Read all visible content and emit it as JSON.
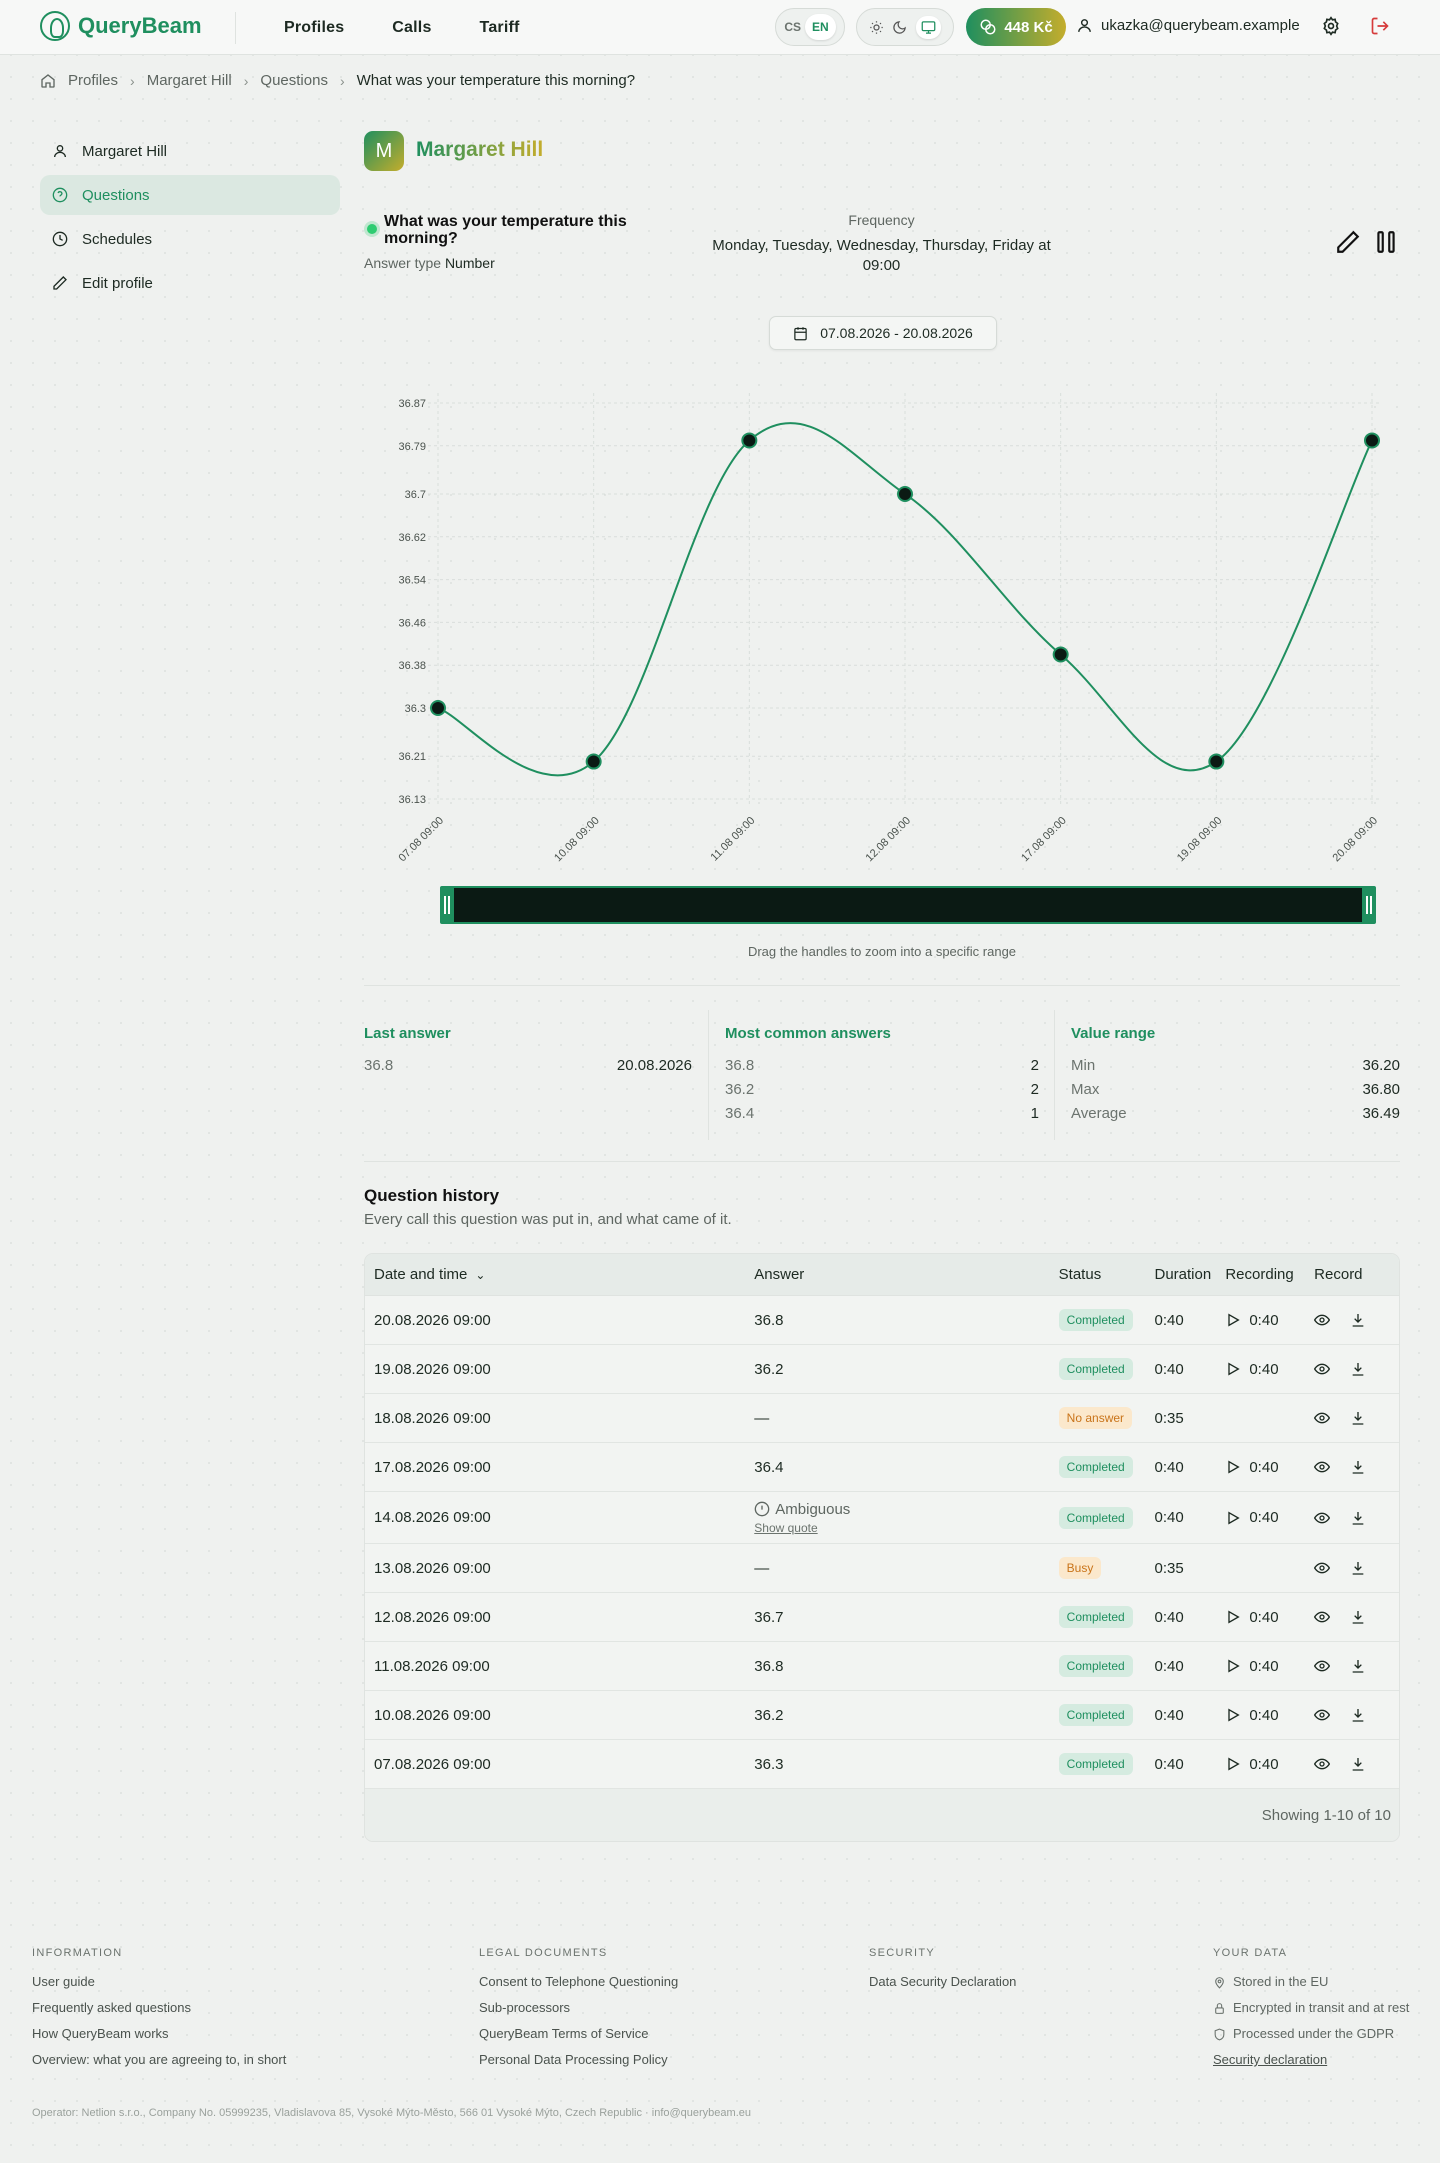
{
  "header": {
    "brand": "QueryBeam",
    "nav": [
      "Profiles",
      "Calls",
      "Tariff"
    ],
    "lang": {
      "cs": "CS",
      "en": "EN",
      "active": "EN"
    },
    "theme_icons": [
      "sun-icon",
      "moon-icon",
      "monitor-icon"
    ],
    "credit": "448 Kč",
    "user_email": "ukazka@querybeam.example"
  },
  "breadcrumb": [
    "Profiles",
    "Margaret Hill",
    "Questions",
    "What was your temperature this morning?"
  ],
  "sidebar": {
    "items": [
      {
        "label": "Margaret Hill",
        "icon": "user-icon"
      },
      {
        "label": "Questions",
        "icon": "help-circle-icon",
        "active": true
      },
      {
        "label": "Schedules",
        "icon": "clock-icon"
      },
      {
        "label": "Edit profile",
        "icon": "pencil-icon"
      }
    ]
  },
  "profile": {
    "initial": "M",
    "name": "Margaret Hill"
  },
  "question": {
    "title": "What was your temperature this morning?",
    "answer_type_label": "Answer type",
    "answer_type": "Number",
    "frequency_label": "Frequency",
    "frequency": "Monday, Tuesday, Wednesday, Thursday, Friday at 09:00"
  },
  "date_range": "07.08.2026 - 20.08.2026",
  "chart_data": {
    "type": "line",
    "x": [
      "07.08 09:00",
      "10.08 09:00",
      "11.08 09:00",
      "12.08 09:00",
      "17.08 09:00",
      "19.08 09:00",
      "20.08 09:00"
    ],
    "values": [
      36.3,
      36.2,
      36.8,
      36.7,
      36.4,
      36.2,
      36.8
    ],
    "yticks": [
      "36.87",
      "36.79",
      "36.7",
      "36.62",
      "36.54",
      "36.46",
      "36.38",
      "36.3",
      "36.21",
      "36.13"
    ],
    "ylim": [
      36.13,
      36.87
    ],
    "grid": true,
    "line_color": "#1f8f5f",
    "legend": "none"
  },
  "zoom_hint": "Drag the handles to zoom into a specific range",
  "stats": {
    "last_answer": {
      "title": "Last answer",
      "value": "36.8",
      "date": "20.08.2026"
    },
    "most_common": {
      "title": "Most common answers",
      "items": [
        {
          "value": "36.8",
          "count": "2"
        },
        {
          "value": "36.2",
          "count": "2"
        },
        {
          "value": "36.4",
          "count": "1"
        }
      ]
    },
    "range": {
      "title": "Value range",
      "items": [
        {
          "label": "Min",
          "value": "36.20"
        },
        {
          "label": "Max",
          "value": "36.80"
        },
        {
          "label": "Average",
          "value": "36.49"
        }
      ]
    }
  },
  "history": {
    "title": "Question history",
    "subtitle": "Every call this question was put in, and what came of it.",
    "columns": [
      "Date and time",
      "Answer",
      "Status",
      "Duration",
      "Recording",
      "Record"
    ],
    "rows": [
      {
        "date": "20.08.2026 09:00",
        "answer": "36.8",
        "status": "Completed",
        "duration": "0:40",
        "recording": "0:40"
      },
      {
        "date": "19.08.2026 09:00",
        "answer": "36.2",
        "status": "Completed",
        "duration": "0:40",
        "recording": "0:40"
      },
      {
        "date": "18.08.2026 09:00",
        "answer": "—",
        "status": "No answer",
        "duration": "0:35",
        "recording": ""
      },
      {
        "date": "17.08.2026 09:00",
        "answer": "36.4",
        "status": "Completed",
        "duration": "0:40",
        "recording": "0:40"
      },
      {
        "date": "14.08.2026 09:00",
        "answer": "Ambiguous",
        "quote": "Show quote",
        "status": "Completed",
        "duration": "0:40",
        "recording": "0:40"
      },
      {
        "date": "13.08.2026 09:00",
        "answer": "—",
        "status": "Busy",
        "duration": "0:35",
        "recording": ""
      },
      {
        "date": "12.08.2026 09:00",
        "answer": "36.7",
        "status": "Completed",
        "duration": "0:40",
        "recording": "0:40"
      },
      {
        "date": "11.08.2026 09:00",
        "answer": "36.8",
        "status": "Completed",
        "duration": "0:40",
        "recording": "0:40"
      },
      {
        "date": "10.08.2026 09:00",
        "answer": "36.2",
        "status": "Completed",
        "duration": "0:40",
        "recording": "0:40"
      },
      {
        "date": "07.08.2026 09:00",
        "answer": "36.3",
        "status": "Completed",
        "duration": "0:40",
        "recording": "0:40"
      }
    ],
    "showing": "Showing 1-10 of 10"
  },
  "footer": {
    "information": {
      "heading": "INFORMATION",
      "links": [
        "User guide",
        "Frequently asked questions",
        "How QueryBeam works",
        "Overview: what you are agreeing to, in short"
      ]
    },
    "legal": {
      "heading": "LEGAL DOCUMENTS",
      "links": [
        "Consent to Telephone Questioning",
        "Sub-processors",
        "QueryBeam Terms of Service",
        "Personal Data Processing Policy"
      ]
    },
    "security": {
      "heading": "SECURITY",
      "links": [
        "Data Security Declaration"
      ]
    },
    "your_data": {
      "heading": "YOUR DATA",
      "items": [
        "Stored in the EU",
        "Encrypted in transit and at rest",
        "Processed under the GDPR"
      ],
      "link": "Security declaration"
    },
    "operator": "Operator: Netlion s.r.o., Company No. 05999235, Vladislavova 85, Vysoké Mýto-Město, 566 01 Vysoké Mýto, Czech Republic · info@querybeam.eu"
  }
}
